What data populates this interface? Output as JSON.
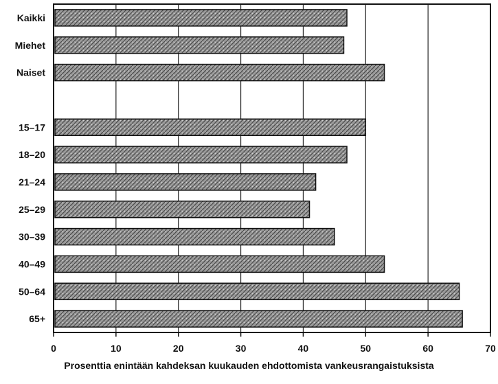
{
  "chart_data": {
    "type": "bar",
    "orientation": "horizontal",
    "categories": [
      "Kaikki",
      "Miehet",
      "Naiset",
      "",
      "15–17",
      "18–20",
      "21–24",
      "25–29",
      "30–39",
      "40–49",
      "50–64",
      "65+"
    ],
    "values": [
      47,
      46.5,
      53,
      null,
      50,
      47,
      42,
      41,
      45,
      53,
      65,
      65.5
    ],
    "xlim": [
      0,
      70
    ],
    "xticks": [
      0,
      10,
      20,
      30,
      40,
      50,
      60,
      70
    ],
    "xlabel": "Prosenttia enintään kahdeksan kuukauden ehdottomista vankeusrangaistuksista",
    "title": "",
    "ylabel": "",
    "grid": "vertical",
    "bar_color": "#8c8c8c"
  }
}
